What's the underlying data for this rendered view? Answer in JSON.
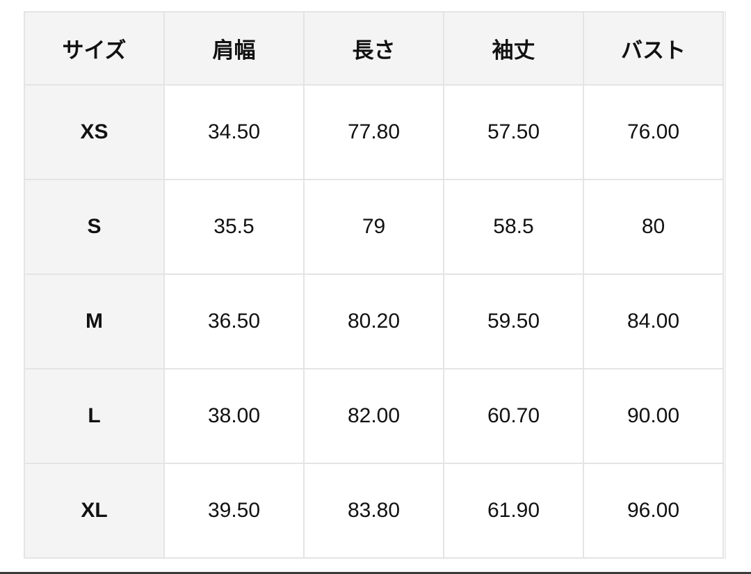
{
  "headers": [
    "サイズ",
    "肩幅",
    "長さ",
    "袖丈",
    "バスト"
  ],
  "rows": [
    {
      "size": "XS",
      "values": [
        "34.50",
        "77.80",
        "57.50",
        "76.00"
      ]
    },
    {
      "size": "S",
      "values": [
        "35.5",
        "79",
        "58.5",
        "80"
      ]
    },
    {
      "size": "M",
      "values": [
        "36.50",
        "80.20",
        "59.50",
        "84.00"
      ]
    },
    {
      "size": "L",
      "values": [
        "38.00",
        "82.00",
        "60.70",
        "90.00"
      ]
    },
    {
      "size": "XL",
      "values": [
        "39.50",
        "83.80",
        "61.90",
        "96.00"
      ]
    }
  ]
}
